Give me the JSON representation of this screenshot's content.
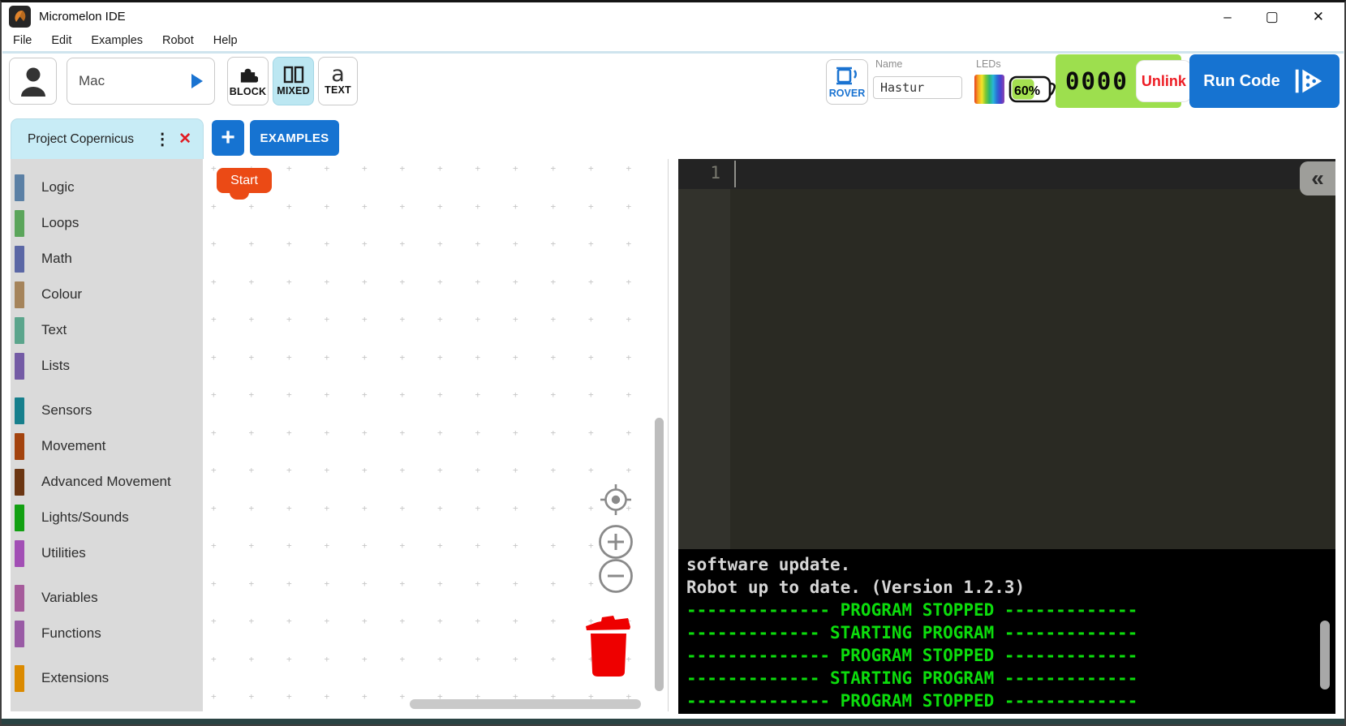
{
  "window": {
    "title": "Micromelon IDE",
    "controls": {
      "minimize": "–",
      "maximize": "▢",
      "close": "✕"
    }
  },
  "menu": {
    "items": [
      "File",
      "Edit",
      "Examples",
      "Robot",
      "Help"
    ]
  },
  "toolbar": {
    "target_select": {
      "value": "Mac"
    },
    "modes": {
      "block_label": "BLOCK",
      "mixed_label": "MIXED",
      "text_label": "TEXT",
      "text_icon_glyph": "a",
      "active_mode": "MIXED"
    },
    "rover": {
      "button_label": "ROVER",
      "name_label": "Name",
      "name_value": "Hastur",
      "leds_label": "LEDs",
      "led_colors": [
        "#e8401c",
        "#f5a623",
        "#f3e32a",
        "#7ec832",
        "#2bb673",
        "#29b6d8",
        "#2a6fd6",
        "#4b3fd0",
        "#8e44ad"
      ],
      "battery_percent": "60%",
      "battery_fill_color": "#a4e050",
      "code_display": "0000",
      "unlink_label": "Unlink",
      "panel_color": "#9ddf4e"
    },
    "run_button": {
      "label": "Run Code",
      "color": "#1673d1"
    }
  },
  "tabs": {
    "active_tab": {
      "label": "Project Copernicus",
      "menu_icon": "⋮",
      "close_icon": "✕",
      "color": "#c8ecf6"
    },
    "add_label": "+",
    "examples_label": "EXAMPLES"
  },
  "palette": {
    "items": [
      {
        "label": "Logic",
        "color": "#5b80a5",
        "gap": false
      },
      {
        "label": "Loops",
        "color": "#5ba55b",
        "gap": false
      },
      {
        "label": "Math",
        "color": "#5b67a5",
        "gap": false
      },
      {
        "label": "Colour",
        "color": "#a5845b",
        "gap": false
      },
      {
        "label": "Text",
        "color": "#5ba58c",
        "gap": false
      },
      {
        "label": "Lists",
        "color": "#745ba5",
        "gap": false
      },
      {
        "label": "Sensors",
        "color": "#177f8c",
        "gap": true
      },
      {
        "label": "Movement",
        "color": "#a3430e",
        "gap": false
      },
      {
        "label": "Advanced Movement",
        "color": "#6b3613",
        "gap": false
      },
      {
        "label": "Lights/Sounds",
        "color": "#12a012",
        "gap": false
      },
      {
        "label": "Utilities",
        "color": "#a24fb5",
        "gap": false
      },
      {
        "label": "Variables",
        "color": "#a55b9b",
        "gap": true
      },
      {
        "label": "Functions",
        "color": "#995ba5",
        "gap": false
      },
      {
        "label": "Extensions",
        "color": "#db8a00",
        "gap": true
      }
    ]
  },
  "canvas": {
    "start_block": {
      "label": "Start",
      "color": "#eb4a15"
    },
    "trash_color": "#ee0000"
  },
  "editor": {
    "line_number": "1",
    "collapse_icon": "«"
  },
  "console": {
    "lines": [
      {
        "text": "software update.",
        "kind": "info"
      },
      {
        "text": "Robot up to date. (Version 1.2.3)",
        "kind": "info"
      },
      {
        "text": "-------------- PROGRAM STOPPED -------------",
        "kind": "status"
      },
      {
        "text": "------------- STARTING PROGRAM -------------",
        "kind": "status"
      },
      {
        "text": "-------------- PROGRAM STOPPED -------------",
        "kind": "status"
      },
      {
        "text": "------------- STARTING PROGRAM -------------",
        "kind": "status"
      },
      {
        "text": "-------------- PROGRAM STOPPED -------------",
        "kind": "status"
      }
    ]
  }
}
